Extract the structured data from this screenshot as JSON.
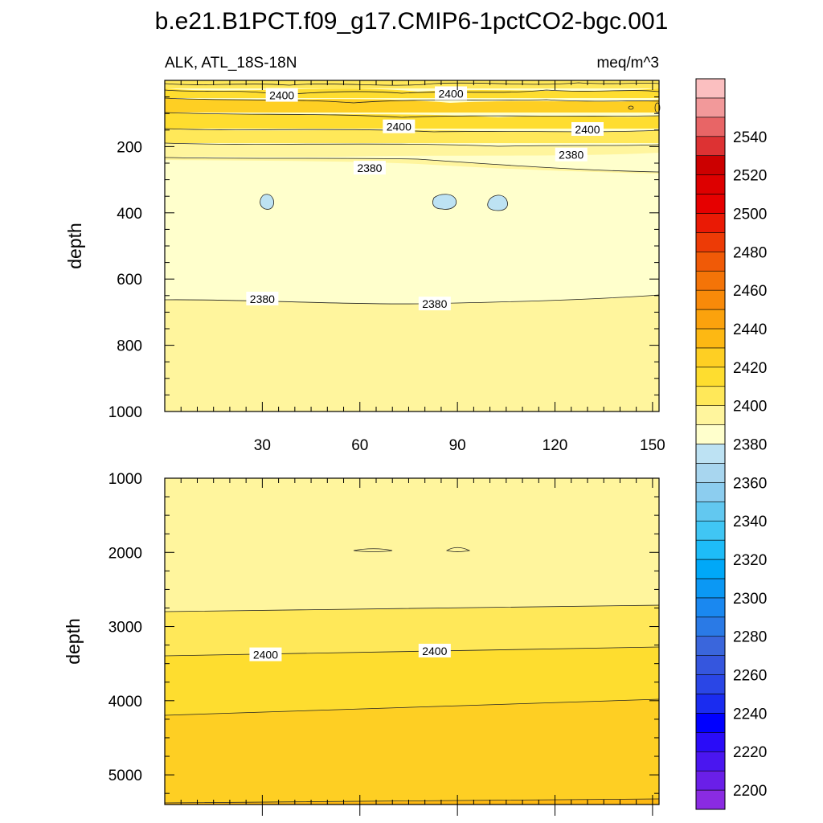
{
  "chart_data": {
    "type": "contour",
    "title": "b.e21.B1PCT.f09_g17.CMIP6-1pctCO2-bgc.001",
    "variable_label": "ALK, ATL_18S-18N",
    "units_label": "meq/m^3",
    "panels": [
      {
        "name": "upper",
        "ylabel": "depth",
        "ylim": [
          0,
          1000
        ],
        "yticks": [
          200,
          400,
          600,
          800,
          1000
        ],
        "xlim": [
          0,
          152
        ],
        "xticks": [
          30,
          60,
          90,
          120,
          150
        ],
        "contour_labels": [
          {
            "text": "2400",
            "x": 36,
            "y": 45
          },
          {
            "text": "2400",
            "x": 88,
            "y": 40
          },
          {
            "text": "2400",
            "x": 72,
            "y": 140
          },
          {
            "text": "2400",
            "x": 130,
            "y": 148
          },
          {
            "text": "2380",
            "x": 63,
            "y": 265
          },
          {
            "text": "2380",
            "x": 125,
            "y": 225
          },
          {
            "text": "2380",
            "x": 30,
            "y": 660
          },
          {
            "text": "2380",
            "x": 83,
            "y": 675
          }
        ]
      },
      {
        "name": "lower",
        "ylabel": "depth",
        "ylim": [
          1000,
          5400
        ],
        "yticks": [
          1000,
          2000,
          3000,
          4000,
          5000
        ],
        "xlim": [
          0,
          152
        ],
        "contour_labels": [
          {
            "text": "2400",
            "x": 31,
            "y": 3380
          },
          {
            "text": "2400",
            "x": 83,
            "y": 3330
          }
        ]
      }
    ],
    "colorbar": {
      "levels": [
        2190,
        2200,
        2210,
        2220,
        2230,
        2240,
        2250,
        2260,
        2270,
        2280,
        2290,
        2300,
        2310,
        2320,
        2330,
        2340,
        2350,
        2360,
        2370,
        2380,
        2390,
        2400,
        2410,
        2420,
        2430,
        2440,
        2450,
        2460,
        2470,
        2480,
        2490,
        2500,
        2510,
        2520,
        2530,
        2540,
        2550,
        2560
      ],
      "tick_labels": [
        "2200",
        "2220",
        "2240",
        "2260",
        "2280",
        "2300",
        "2320",
        "2340",
        "2360",
        "2380",
        "2400",
        "2420",
        "2440",
        "2460",
        "2480",
        "2500",
        "2520",
        "2540"
      ],
      "colors_bottom_to_top": [
        "#8a2be2",
        "#6a1fe8",
        "#4a16f0",
        "#2a0cf8",
        "#0000ff",
        "#1a2cf0",
        "#2a46e6",
        "#3556de",
        "#3a66dc",
        "#2a7ae6",
        "#1a88f0",
        "#0b98f4",
        "#00a8f8",
        "#1ebcf8",
        "#40c6f4",
        "#62c8f0",
        "#8ccdef",
        "#a8d6ef",
        "#bde2f3",
        "#ffffcc",
        "#fff59d",
        "#ffe859",
        "#fedd2f",
        "#fecf23",
        "#fdb813",
        "#fba20d",
        "#f98a09",
        "#f47408",
        "#f05a07",
        "#ed3b06",
        "#ea1a05",
        "#e60000",
        "#dd0000",
        "#cc0000",
        "#dd3233",
        "#e86566",
        "#f2999a",
        "#fbbfc0"
      ]
    },
    "fill_bands": {
      "upper": [
        {
          "y": [
            0,
            20
          ],
          "value": 2400
        },
        {
          "y": [
            20,
            55
          ],
          "value": 2410
        },
        {
          "y": [
            55,
            85
          ],
          "value": 2415
        },
        {
          "y": [
            85,
            110
          ],
          "value": 2420
        },
        {
          "y": [
            110,
            150
          ],
          "value": 2410
        },
        {
          "y": [
            150,
            180
          ],
          "value": 2400
        },
        {
          "y": [
            180,
            225
          ],
          "value": 2390
        },
        {
          "y": [
            225,
            670
          ],
          "value": 2380
        },
        {
          "y": [
            670,
            1000
          ],
          "value": 2390
        }
      ],
      "lower": [
        {
          "y": [
            1000,
            2800
          ],
          "value": 2390
        },
        {
          "y": [
            2800,
            3350
          ],
          "value": 2400
        },
        {
          "y": [
            3350,
            4150
          ],
          "value": 2410
        },
        {
          "y": [
            4150,
            5300
          ],
          "value": 2420
        },
        {
          "y": [
            5300,
            5400
          ],
          "value": 2430
        }
      ]
    },
    "low_patches": [
      {
        "panel": "upper",
        "x": 33,
        "y": 360,
        "value": 2370
      },
      {
        "panel": "upper",
        "x": 85,
        "y": 360,
        "value": 2370
      },
      {
        "panel": "upper",
        "x": 102,
        "y": 365,
        "value": 2370
      }
    ]
  }
}
